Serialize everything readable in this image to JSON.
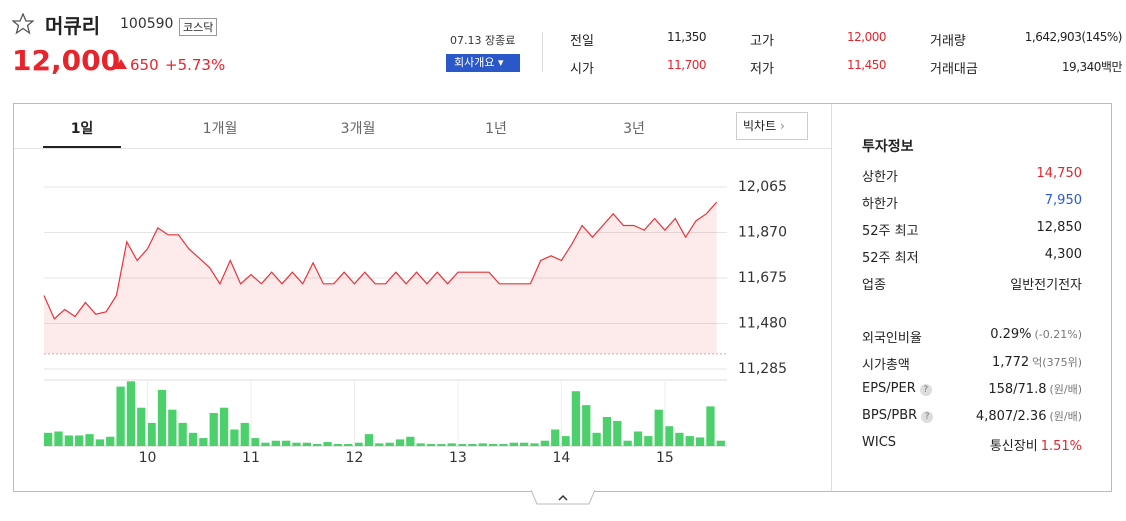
{
  "header": {
    "name": "머큐리",
    "code": "100590",
    "market": "코스닥",
    "price": "12,000",
    "change": "650",
    "change_rate": "+5.73%",
    "status": "07.13 장종료",
    "company_button": "회사개요"
  },
  "summary": [
    [
      {
        "label": "전일",
        "value": "11,350"
      },
      {
        "label": "고가",
        "value": "12,000",
        "color": "#e8232b"
      },
      {
        "label": "거래량",
        "value": "1,642,903(145%)"
      }
    ],
    [
      {
        "label": "시가",
        "value": "11,700",
        "color": "#e8232b"
      },
      {
        "label": "저가",
        "value": "11,450",
        "color": "#e8232b"
      },
      {
        "label": "거래대금",
        "value": "19,340백만"
      }
    ]
  ],
  "tabs": [
    "1일",
    "1개월",
    "3개월",
    "1년",
    "3년"
  ],
  "big_chart": "빅차트",
  "info": {
    "title": "투자정보",
    "groups": [
      [
        {
          "label": "상한가",
          "value": "14,750",
          "color": "#e8232b"
        },
        {
          "label": "하한가",
          "value": "7,950",
          "color": "#2b58d8"
        },
        {
          "label": "52주 최고",
          "value": "12,850"
        },
        {
          "label": "52주 최저",
          "value": "4,300"
        },
        {
          "label": "업종",
          "value": "일반전기전자"
        }
      ],
      [
        {
          "label": "외국인비율",
          "value": "0.29%",
          "sub": "(-0.21%)"
        },
        {
          "label": "시가총액",
          "value": "1,772",
          "sub": "억(375위)"
        },
        {
          "label": "EPS/PER",
          "help": true,
          "value": "158/71.8",
          "sub": "(원/배)"
        },
        {
          "label": "BPS/PBR",
          "help": true,
          "value": "4,807/2.36",
          "sub": "(원/배)"
        },
        {
          "label": "WICS",
          "value": "통신장비",
          "sub": "1.51%",
          "sub_color": "#e8232b"
        }
      ]
    ]
  },
  "chart_data": [
    {
      "type": "line",
      "color": "#e8343b",
      "baseline": 11350,
      "x": [
        9.0,
        9.1,
        9.2,
        9.3,
        9.4,
        9.5,
        9.6,
        9.7,
        9.8,
        9.9,
        10.0,
        10.1,
        10.2,
        10.3,
        10.4,
        10.5,
        10.6,
        10.7,
        10.8,
        10.9,
        11.0,
        11.1,
        11.2,
        11.3,
        11.4,
        11.5,
        11.6,
        11.7,
        11.8,
        11.9,
        12.0,
        12.1,
        12.2,
        12.3,
        12.4,
        12.5,
        12.6,
        12.7,
        12.8,
        12.9,
        13.0,
        13.1,
        13.2,
        13.3,
        13.4,
        13.5,
        13.6,
        13.7,
        13.8,
        13.9,
        14.0,
        14.1,
        14.2,
        14.3,
        14.4,
        14.5,
        14.6,
        14.7,
        14.8,
        14.9,
        15.0,
        15.1,
        15.2,
        15.3,
        15.4,
        15.5
      ],
      "values": [
        11600,
        11500,
        11540,
        11510,
        11570,
        11520,
        11530,
        11600,
        11830,
        11750,
        11800,
        11890,
        11860,
        11860,
        11800,
        11760,
        11720,
        11650,
        11750,
        11650,
        11690,
        11650,
        11700,
        11650,
        11700,
        11650,
        11740,
        11650,
        11650,
        11700,
        11650,
        11700,
        11650,
        11650,
        11700,
        11650,
        11700,
        11650,
        11700,
        11650,
        11700,
        11700,
        11700,
        11700,
        11650,
        11650,
        11650,
        11650,
        11750,
        11770,
        11750,
        11820,
        11900,
        11850,
        11900,
        11950,
        11900,
        11900,
        11880,
        11930,
        11880,
        11930,
        11850,
        11920,
        11950,
        12000
      ],
      "xlim": [
        9,
        15.6
      ],
      "ylim": [
        11285,
        12065
      ],
      "yticks": [
        {
          "value": 11285,
          "label": "11,285"
        },
        {
          "value": 11480,
          "label": "11,480"
        },
        {
          "value": 11675,
          "label": "11,675"
        },
        {
          "value": 11870,
          "label": "11,870"
        },
        {
          "value": 12065,
          "label": "12,065"
        }
      ],
      "grid": true
    },
    {
      "type": "bar",
      "color": "#4cd06c",
      "x": [
        9.0,
        9.1,
        9.2,
        9.3,
        9.4,
        9.5,
        9.6,
        9.7,
        9.8,
        9.9,
        10.0,
        10.1,
        10.2,
        10.3,
        10.4,
        10.5,
        10.6,
        10.7,
        10.8,
        10.9,
        11.0,
        11.1,
        11.2,
        11.3,
        11.4,
        11.5,
        11.6,
        11.7,
        11.8,
        11.9,
        12.0,
        12.1,
        12.2,
        12.3,
        12.4,
        12.5,
        12.6,
        12.7,
        12.8,
        12.9,
        13.0,
        13.1,
        13.2,
        13.3,
        13.4,
        13.5,
        13.6,
        13.7,
        13.8,
        13.9,
        14.0,
        14.1,
        14.2,
        14.3,
        14.4,
        14.5,
        14.6,
        14.7,
        14.8,
        14.9,
        15.0,
        15.1,
        15.2,
        15.3,
        15.4,
        15.5
      ],
      "values": [
        20,
        22,
        16,
        16,
        18,
        10,
        14,
        90,
        98,
        58,
        35,
        85,
        55,
        35,
        20,
        12,
        50,
        58,
        25,
        35,
        12,
        5,
        8,
        8,
        5,
        5,
        3,
        6,
        3,
        3,
        5,
        18,
        4,
        5,
        10,
        14,
        4,
        3,
        3,
        4,
        3,
        3,
        4,
        3,
        3,
        5,
        5,
        4,
        8,
        25,
        15,
        83,
        62,
        20,
        44,
        38,
        8,
        22,
        15,
        55,
        30,
        20,
        15,
        13,
        60,
        8
      ],
      "xlim": [
        9,
        15.6
      ],
      "ylim": [
        0,
        100
      ],
      "xticks": [
        10,
        11,
        12,
        13,
        14,
        15
      ]
    }
  ]
}
